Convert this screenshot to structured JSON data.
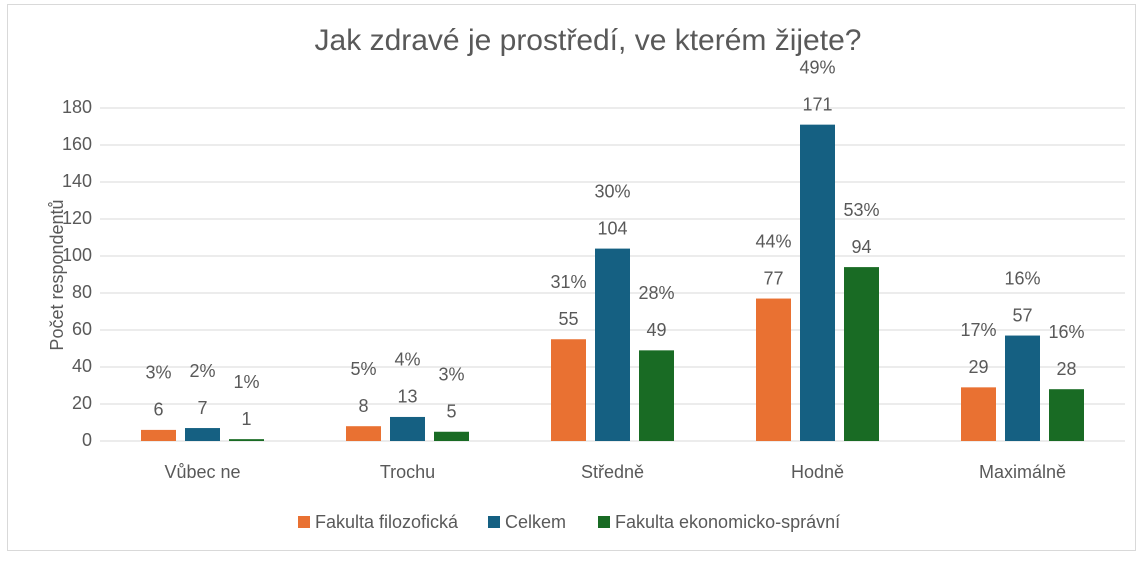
{
  "chart_data": {
    "type": "bar",
    "title": "Jak zdravé je prostředí, ve kterém žijete?",
    "y_label": "Počet respondentů",
    "categories": [
      "Vůbec ne",
      "Trochu",
      "Středně",
      "Hodně",
      "Maximálně"
    ],
    "series": [
      {
        "name": "Fakulta filozofická",
        "color": "#e97132",
        "values": [
          6,
          8,
          55,
          77,
          29
        ],
        "percent_labels": [
          "3%",
          "5%",
          "31%",
          "44%",
          "17%"
        ]
      },
      {
        "name": "Celkem",
        "color": "#156082",
        "values": [
          7,
          13,
          104,
          171,
          57
        ],
        "percent_labels": [
          "2%",
          "4%",
          "30%",
          "49%",
          "16%"
        ]
      },
      {
        "name": "Fakulta ekonomicko-správní",
        "color": "#196b24",
        "values": [
          1,
          5,
          49,
          94,
          28
        ],
        "percent_labels": [
          "1%",
          "3%",
          "28%",
          "53%",
          "16%"
        ]
      }
    ],
    "ylim": [
      0,
      180
    ],
    "yticks": [
      0,
      20,
      40,
      60,
      80,
      100,
      120,
      140,
      160,
      180
    ],
    "grid": true,
    "legend": "bottom"
  }
}
